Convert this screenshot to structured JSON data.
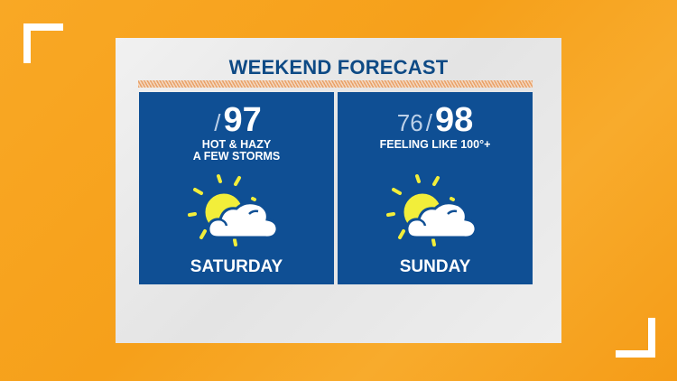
{
  "title": "WEEKEND FORECAST",
  "colors": {
    "background": "#f7a21e",
    "card": "#0f4f94",
    "title": "#0e4a85",
    "sun": "#f2ee3a"
  },
  "days": [
    {
      "day": "SATURDAY",
      "low": "",
      "high": "97",
      "description_lines": [
        "HOT & HAZY",
        "A FEW STORMS"
      ],
      "icon": "partly-sunny-icon"
    },
    {
      "day": "SUNDAY",
      "low": "76",
      "high": "98",
      "description_lines": [
        "FEELING LIKE 100°+"
      ],
      "icon": "partly-sunny-icon"
    }
  ],
  "slash": "/"
}
